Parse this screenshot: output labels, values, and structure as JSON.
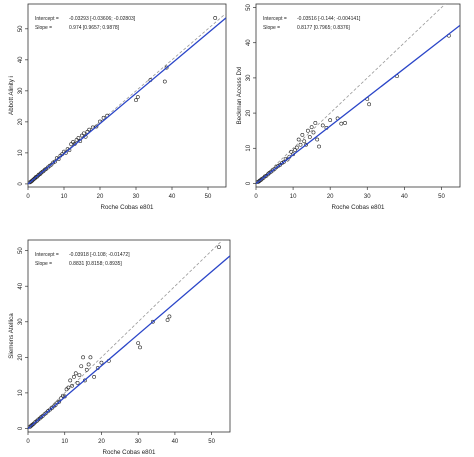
{
  "chart_data": [
    {
      "type": "scatter",
      "xlabel": "Roche Cobas e801",
      "ylabel": "Abbott Alinity i",
      "xlim": [
        0,
        55
      ],
      "ylim": [
        -1,
        58
      ],
      "xticks": [
        0,
        10,
        20,
        30,
        40,
        50
      ],
      "yticks": [
        0,
        10,
        20,
        30,
        40,
        50
      ],
      "annotation": {
        "intercept_label": "Intercept =",
        "intercept_value": "-0.03293 [-0.03606; -0.02803]",
        "slope_label": "Slope =",
        "slope_value": "0.974 [0.9657; 0.9878]"
      },
      "regression": {
        "intercept": -0.033,
        "slope": 0.974
      },
      "identity_line": true,
      "points": [
        [
          0.5,
          0.5
        ],
        [
          0.8,
          0.7
        ],
        [
          1.0,
          0.9
        ],
        [
          1.2,
          1.1
        ],
        [
          1.5,
          1.4
        ],
        [
          1.8,
          1.7
        ],
        [
          2.0,
          1.9
        ],
        [
          2.2,
          2.2
        ],
        [
          2.5,
          2.3
        ],
        [
          2.8,
          2.7
        ],
        [
          3.0,
          3.0
        ],
        [
          3.3,
          3.1
        ],
        [
          3.6,
          3.5
        ],
        [
          4.0,
          3.9
        ],
        [
          4.3,
          4.1
        ],
        [
          4.7,
          4.6
        ],
        [
          5.0,
          4.8
        ],
        [
          5.5,
          5.3
        ],
        [
          6.0,
          5.8
        ],
        [
          6.5,
          6.2
        ],
        [
          7.0,
          6.9
        ],
        [
          7.5,
          7.2
        ],
        [
          8.0,
          8.3
        ],
        [
          8.5,
          8.0
        ],
        [
          9.0,
          9.1
        ],
        [
          9.5,
          9.6
        ],
        [
          10.0,
          10.4
        ],
        [
          10.5,
          10.0
        ],
        [
          11.0,
          11.2
        ],
        [
          11.5,
          10.9
        ],
        [
          12.0,
          12.8
        ],
        [
          12.5,
          13.5
        ],
        [
          13.0,
          12.9
        ],
        [
          13.5,
          14.2
        ],
        [
          14.0,
          14.8
        ],
        [
          14.5,
          13.8
        ],
        [
          15.0,
          15.6
        ],
        [
          15.5,
          16.3
        ],
        [
          16.0,
          15.2
        ],
        [
          16.5,
          16.8
        ],
        [
          17.0,
          17.5
        ],
        [
          18.0,
          18.2
        ],
        [
          19.0,
          18.5
        ],
        [
          20.0,
          20.1
        ],
        [
          21.0,
          21.3
        ],
        [
          22.0,
          22.0
        ],
        [
          30.0,
          27.0
        ],
        [
          30.5,
          28.0
        ],
        [
          34.0,
          33.5
        ],
        [
          38.0,
          33.0
        ],
        [
          38.5,
          37.5
        ],
        [
          52.0,
          53.5
        ]
      ]
    },
    {
      "type": "scatter",
      "xlabel": "Roche Cobas e801",
      "ylabel": "Beckman Access Dxl",
      "xlim": [
        0,
        55
      ],
      "ylim": [
        -1,
        51
      ],
      "xticks": [
        0,
        10,
        20,
        30,
        40,
        50
      ],
      "yticks": [
        0,
        10,
        20,
        30,
        40,
        50
      ],
      "annotation": {
        "intercept_label": "Intercept =",
        "intercept_value": "-0.03516 [-0.144; -0.004141]",
        "slope_label": "Slope =",
        "slope_value": "0.8177 [0.7965; 0.8376]"
      },
      "regression": {
        "intercept": -0.035,
        "slope": 0.8177
      },
      "identity_line": true,
      "points": [
        [
          0.5,
          0.4
        ],
        [
          0.8,
          0.6
        ],
        [
          1.0,
          0.8
        ],
        [
          1.3,
          1.0
        ],
        [
          1.6,
          1.3
        ],
        [
          2.0,
          1.6
        ],
        [
          2.4,
          2.0
        ],
        [
          2.8,
          2.2
        ],
        [
          3.2,
          2.6
        ],
        [
          3.6,
          3.0
        ],
        [
          4.0,
          3.3
        ],
        [
          4.5,
          3.7
        ],
        [
          5.0,
          4.1
        ],
        [
          5.5,
          4.6
        ],
        [
          6.0,
          5.0
        ],
        [
          6.5,
          5.3
        ],
        [
          7.0,
          5.8
        ],
        [
          7.5,
          6.1
        ],
        [
          8.0,
          7.0
        ],
        [
          8.5,
          6.8
        ],
        [
          9.0,
          7.6
        ],
        [
          9.5,
          9.0
        ],
        [
          10.0,
          8.3
        ],
        [
          10.5,
          9.5
        ],
        [
          11.0,
          10.2
        ],
        [
          11.5,
          12.5
        ],
        [
          12.0,
          11.0
        ],
        [
          12.5,
          13.8
        ],
        [
          13.0,
          12.0
        ],
        [
          13.5,
          11.0
        ],
        [
          14.0,
          15.0
        ],
        [
          14.5,
          13.2
        ],
        [
          15.0,
          16.0
        ],
        [
          15.5,
          14.5
        ],
        [
          16.0,
          17.2
        ],
        [
          16.5,
          12.5
        ],
        [
          17.0,
          10.5
        ],
        [
          18.0,
          16.5
        ],
        [
          19.0,
          15.8
        ],
        [
          20.0,
          18.0
        ],
        [
          22.0,
          18.5
        ],
        [
          23.0,
          17.0
        ],
        [
          24.0,
          17.2
        ],
        [
          30.0,
          24.0
        ],
        [
          30.5,
          22.5
        ],
        [
          38.0,
          30.5
        ],
        [
          52.0,
          42.0
        ]
      ]
    },
    {
      "type": "scatter",
      "xlabel": "Roche Cobas e801",
      "ylabel": "Siemens Atellica",
      "xlim": [
        0,
        55
      ],
      "ylim": [
        -1,
        53
      ],
      "xticks": [
        0,
        10,
        20,
        30,
        40,
        50
      ],
      "yticks": [
        0,
        10,
        20,
        30,
        40,
        50
      ],
      "annotation": {
        "intercept_label": "Intercept =",
        "intercept_value": "-0.03918 [-0.108; -0.01472]",
        "slope_label": "Slope =",
        "slope_value": "0.8831 [0.8158; 0.8935]"
      },
      "regression": {
        "intercept": -0.039,
        "slope": 0.8831
      },
      "identity_line": true,
      "points": [
        [
          0.5,
          0.4
        ],
        [
          0.8,
          0.7
        ],
        [
          1.0,
          0.9
        ],
        [
          1.3,
          1.1
        ],
        [
          1.6,
          1.4
        ],
        [
          2.0,
          1.8
        ],
        [
          2.4,
          2.1
        ],
        [
          2.8,
          2.5
        ],
        [
          3.2,
          2.8
        ],
        [
          3.6,
          3.2
        ],
        [
          4.0,
          3.5
        ],
        [
          4.5,
          4.0
        ],
        [
          5.0,
          4.4
        ],
        [
          5.5,
          4.9
        ],
        [
          6.0,
          5.3
        ],
        [
          6.5,
          5.7
        ],
        [
          7.0,
          6.2
        ],
        [
          7.5,
          6.6
        ],
        [
          8.0,
          7.3
        ],
        [
          8.5,
          7.5
        ],
        [
          9.0,
          8.5
        ],
        [
          9.5,
          9.2
        ],
        [
          10.0,
          9.0
        ],
        [
          10.5,
          11.0
        ],
        [
          11.0,
          11.5
        ],
        [
          11.5,
          13.5
        ],
        [
          12.0,
          12.0
        ],
        [
          12.5,
          14.5
        ],
        [
          13.0,
          15.5
        ],
        [
          13.5,
          12.8
        ],
        [
          14.0,
          15.0
        ],
        [
          14.5,
          17.5
        ],
        [
          15.0,
          20.0
        ],
        [
          15.5,
          13.5
        ],
        [
          16.0,
          16.5
        ],
        [
          16.5,
          18.0
        ],
        [
          17.0,
          20.0
        ],
        [
          18.0,
          14.5
        ],
        [
          19.0,
          17.0
        ],
        [
          20.0,
          18.5
        ],
        [
          22.0,
          19.0
        ],
        [
          30.0,
          24.0
        ],
        [
          30.5,
          22.8
        ],
        [
          34.0,
          30.0
        ],
        [
          38.0,
          30.5
        ],
        [
          38.5,
          31.5
        ],
        [
          52.0,
          51.0
        ]
      ]
    }
  ]
}
